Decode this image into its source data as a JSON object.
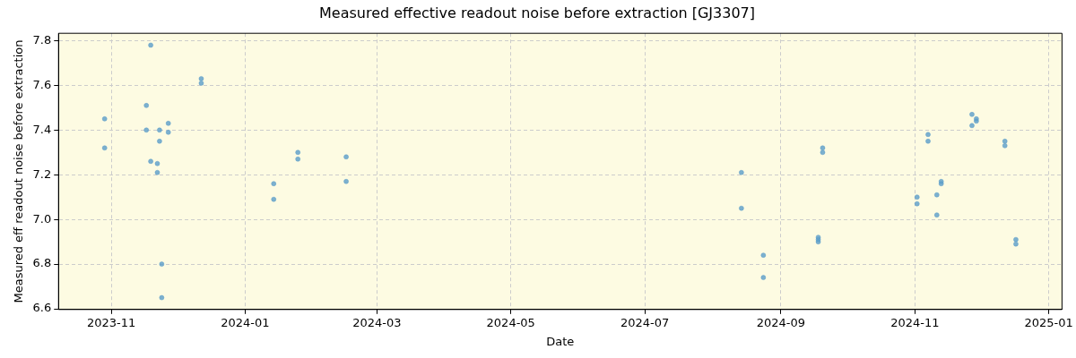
{
  "chart_data": {
    "type": "scatter",
    "title": "Measured effective readout noise before extraction [GJ3307]",
    "xlabel": "Date",
    "ylabel": "Measured eff readout noise before extraction",
    "x": [
      "2023-10-29",
      "2023-10-29",
      "2023-11-19",
      "2023-11-17",
      "2023-11-17",
      "2023-11-19",
      "2023-11-22",
      "2023-11-22",
      "2023-11-23",
      "2023-11-23",
      "2023-11-27",
      "2023-11-27",
      "2023-11-24",
      "2023-11-24",
      "2023-12-12",
      "2023-12-12",
      "2024-01-14",
      "2024-01-14",
      "2024-01-25",
      "2024-01-25",
      "2024-02-16",
      "2024-02-16",
      "2024-08-14",
      "2024-08-14",
      "2024-08-24",
      "2024-08-24",
      "2024-09-18",
      "2024-09-18",
      "2024-09-18",
      "2024-09-20",
      "2024-09-20",
      "2024-11-02",
      "2024-11-02",
      "2024-11-07",
      "2024-11-07",
      "2024-11-11",
      "2024-11-11",
      "2024-11-13",
      "2024-11-13",
      "2024-11-27",
      "2024-11-27",
      "2024-11-29",
      "2024-11-29",
      "2024-12-12",
      "2024-12-12",
      "2024-12-17",
      "2024-12-17"
    ],
    "values": [
      7.45,
      7.32,
      7.78,
      7.51,
      7.4,
      7.26,
      7.25,
      7.21,
      7.4,
      7.35,
      7.43,
      7.39,
      6.8,
      6.65,
      7.63,
      7.61,
      7.16,
      7.09,
      7.3,
      7.27,
      7.28,
      7.17,
      7.21,
      7.05,
      6.84,
      6.74,
      6.92,
      6.91,
      6.9,
      7.32,
      7.3,
      7.1,
      7.07,
      7.38,
      7.35,
      7.11,
      7.02,
      7.17,
      7.16,
      7.47,
      7.42,
      7.45,
      7.44,
      7.35,
      7.33,
      6.91,
      6.89
    ],
    "color": "#5b9dc9",
    "marker": "circle",
    "xlim": [
      "2023-10-08",
      "2025-01-07"
    ],
    "xticks": [
      "2023-11",
      "2024-01",
      "2024-03",
      "2024-05",
      "2024-07",
      "2024-09",
      "2024-11",
      "2025-01"
    ],
    "ylim": [
      6.597,
      7.833
    ],
    "yticks": [
      {
        "value": 6.6,
        "label": "6.6"
      },
      {
        "value": 6.8,
        "label": "6.8"
      },
      {
        "value": 7.0,
        "label": "7.0"
      },
      {
        "value": 7.2,
        "label": "7.2"
      },
      {
        "value": 7.4,
        "label": "7.4"
      },
      {
        "value": 7.6,
        "label": "7.6"
      },
      {
        "value": 7.8,
        "label": "7.8"
      }
    ],
    "grid": true,
    "legend": false
  }
}
